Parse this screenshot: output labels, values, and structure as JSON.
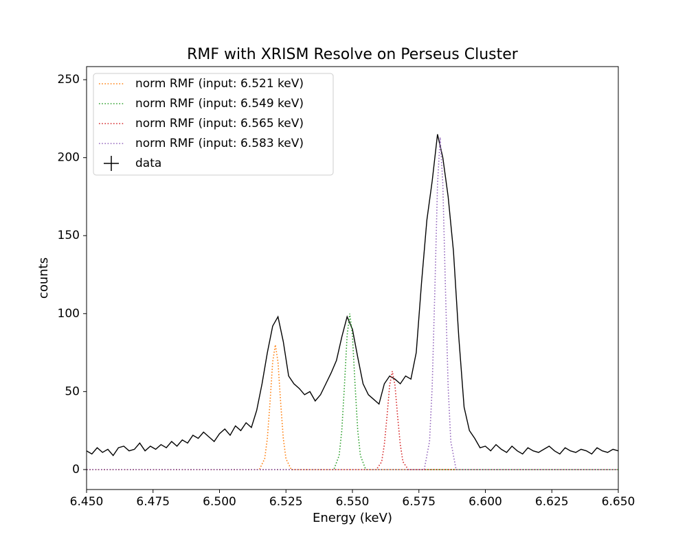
{
  "chart_data": {
    "type": "line",
    "title": "RMF with XRISM Resolve on Perseus Cluster",
    "x_label": "Energy (keV)",
    "y_label": "counts",
    "xlim": [
      6.45,
      6.65
    ],
    "xticks": [
      {
        "value": 6.45,
        "label": "6.450"
      },
      {
        "value": 6.475,
        "label": "6.475"
      },
      {
        "value": 6.5,
        "label": "6.500"
      },
      {
        "value": 6.525,
        "label": "6.525"
      },
      {
        "value": 6.55,
        "label": "6.550"
      },
      {
        "value": 6.575,
        "label": "6.575"
      },
      {
        "value": 6.6,
        "label": "6.600"
      },
      {
        "value": 6.625,
        "label": "6.625"
      },
      {
        "value": 6.65,
        "label": "6.650"
      }
    ],
    "ylim": [
      -12.8,
      258.4
    ],
    "yticks": [
      0,
      50,
      100,
      150,
      200,
      250
    ],
    "legend": "upper left",
    "series": [
      {
        "name": "norm RMF (input: 6.521 keV)",
        "color": "#ff7f0e",
        "style": "dotted",
        "x": [
          6.45,
          6.515,
          6.517,
          6.518,
          6.519,
          6.52,
          6.521,
          6.522,
          6.523,
          6.524,
          6.525,
          6.527,
          6.65
        ],
        "values": [
          0,
          0,
          7,
          20,
          43,
          69,
          80,
          69,
          43,
          20,
          7,
          0,
          0
        ]
      },
      {
        "name": "norm RMF (input: 6.549 keV)",
        "color": "#2ca02c",
        "style": "dotted",
        "x": [
          6.45,
          6.543,
          6.545,
          6.546,
          6.547,
          6.548,
          6.549,
          6.55,
          6.551,
          6.552,
          6.553,
          6.555,
          6.65
        ],
        "values": [
          0,
          0,
          9,
          25,
          54,
          86,
          100,
          86,
          54,
          25,
          9,
          0,
          0
        ]
      },
      {
        "name": "norm RMF (input: 6.565 keV)",
        "color": "#d62728",
        "style": "dotted",
        "x": [
          6.45,
          6.559,
          6.561,
          6.562,
          6.563,
          6.564,
          6.565,
          6.566,
          6.567,
          6.568,
          6.569,
          6.571,
          6.65
        ],
        "values": [
          0,
          0,
          5,
          16,
          34,
          54,
          63,
          54,
          34,
          16,
          5,
          0,
          0
        ]
      },
      {
        "name": "norm RMF (input: 6.583 keV)",
        "color": "#9467bd",
        "style": "dotted",
        "x": [
          6.45,
          6.577,
          6.579,
          6.58,
          6.581,
          6.582,
          6.583,
          6.584,
          6.585,
          6.586,
          6.587,
          6.589,
          6.65
        ],
        "values": [
          0,
          0,
          18,
          53,
          115,
          183,
          213,
          183,
          115,
          53,
          18,
          0,
          0
        ]
      },
      {
        "name": "data",
        "color": "#000000",
        "style": "solid",
        "x": [
          6.45,
          6.452,
          6.454,
          6.456,
          6.458,
          6.46,
          6.462,
          6.464,
          6.466,
          6.468,
          6.47,
          6.472,
          6.474,
          6.476,
          6.478,
          6.48,
          6.482,
          6.484,
          6.486,
          6.488,
          6.49,
          6.492,
          6.494,
          6.496,
          6.498,
          6.5,
          6.502,
          6.504,
          6.506,
          6.508,
          6.51,
          6.512,
          6.514,
          6.516,
          6.518,
          6.52,
          6.522,
          6.524,
          6.526,
          6.528,
          6.53,
          6.532,
          6.534,
          6.536,
          6.538,
          6.54,
          6.542,
          6.544,
          6.546,
          6.548,
          6.55,
          6.552,
          6.554,
          6.556,
          6.558,
          6.56,
          6.562,
          6.564,
          6.566,
          6.568,
          6.57,
          6.572,
          6.574,
          6.576,
          6.578,
          6.58,
          6.582,
          6.584,
          6.586,
          6.588,
          6.59,
          6.592,
          6.594,
          6.596,
          6.598,
          6.6,
          6.602,
          6.604,
          6.606,
          6.608,
          6.61,
          6.612,
          6.614,
          6.616,
          6.618,
          6.62,
          6.622,
          6.624,
          6.626,
          6.628,
          6.63,
          6.632,
          6.634,
          6.636,
          6.638,
          6.64,
          6.642,
          6.644,
          6.646,
          6.648,
          6.65
        ],
        "values": [
          12,
          10,
          14,
          11,
          13,
          9,
          14,
          15,
          12,
          13,
          17,
          12,
          15,
          13,
          16,
          14,
          18,
          15,
          19,
          17,
          22,
          20,
          24,
          21,
          18,
          23,
          26,
          22,
          28,
          25,
          30,
          27,
          38,
          55,
          75,
          92,
          98,
          82,
          60,
          55,
          52,
          48,
          50,
          44,
          48,
          55,
          62,
          70,
          85,
          98,
          90,
          72,
          55,
          48,
          45,
          42,
          55,
          60,
          58,
          55,
          60,
          58,
          75,
          120,
          160,
          185,
          215,
          200,
          175,
          140,
          85,
          40,
          25,
          20,
          14,
          15,
          12,
          16,
          13,
          11,
          15,
          12,
          10,
          14,
          12,
          11,
          13,
          15,
          12,
          10,
          14,
          12,
          11,
          13,
          12,
          10,
          14,
          12,
          11,
          13,
          12
        ]
      }
    ]
  }
}
